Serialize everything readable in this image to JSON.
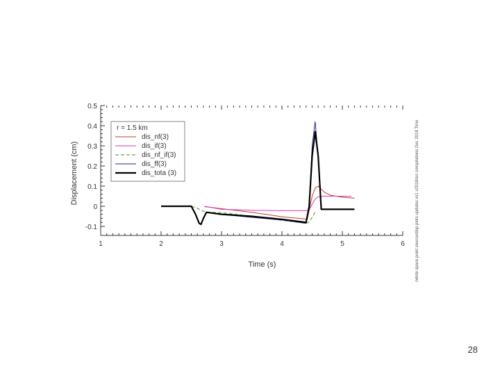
{
  "page": {
    "number": "28"
  },
  "side_note": "/white space point source/disp plots updates vs1 x2018/src compilations Dec 2018 Time",
  "chart_data": {
    "type": "line",
    "title": "",
    "xlabel": "Time (s)",
    "ylabel": "Displacement (cm)",
    "xlim": [
      1,
      6
    ],
    "ylim": [
      -0.1,
      0.5
    ],
    "x_ticks": [
      1,
      2,
      3,
      4,
      5,
      6
    ],
    "y_ticks": [
      -0.1,
      0,
      0.1,
      0.2,
      0.3,
      0.4,
      0.5
    ],
    "y_tick_labels": [
      "-0.1",
      "0",
      "0.1",
      "0.2",
      "0.3",
      "0.4",
      "0.5"
    ],
    "grid": false,
    "legend": {
      "placement": "top-left",
      "header": "r = 1.5 km",
      "entries": [
        "dis_nf(3)",
        "dis_if(3)",
        "dis_nf_if(3)",
        "dis_ff(3)",
        "dis_tota (3)"
      ]
    },
    "series": [
      {
        "name": "dis_nf(3)",
        "color": "#c0392b",
        "width": 1,
        "dash": "",
        "points": [
          [
            2.72,
            -0.002
          ],
          [
            2.8,
            -0.004
          ],
          [
            3.0,
            -0.012
          ],
          [
            3.5,
            -0.03
          ],
          [
            4.0,
            -0.052
          ],
          [
            4.35,
            -0.062
          ],
          [
            4.42,
            -0.064
          ],
          [
            4.45,
            -0.02
          ],
          [
            4.5,
            0.05
          ],
          [
            4.55,
            0.09
          ],
          [
            4.6,
            0.1
          ],
          [
            4.7,
            0.07
          ],
          [
            4.8,
            0.055
          ],
          [
            4.9,
            0.05
          ],
          [
            5.0,
            0.045
          ],
          [
            5.2,
            0.04
          ]
        ]
      },
      {
        "name": "dis_if(3)",
        "color": "#d63ab5",
        "width": 1,
        "dash": "",
        "points": [
          [
            2.72,
            0.0
          ],
          [
            2.8,
            -0.005
          ],
          [
            3.0,
            -0.015
          ],
          [
            3.5,
            -0.02
          ],
          [
            4.0,
            -0.022
          ],
          [
            4.4,
            -0.022
          ],
          [
            4.45,
            -0.02
          ],
          [
            4.5,
            0.01
          ],
          [
            4.55,
            0.035
          ],
          [
            4.6,
            0.047
          ],
          [
            4.7,
            0.05
          ],
          [
            5.0,
            0.05
          ],
          [
            5.15,
            0.05
          ]
        ]
      },
      {
        "name": "dis_nf_if(3)",
        "color": "#3a8d2a",
        "width": 1,
        "dash": "5,3",
        "points": [
          [
            2.5,
            0.0
          ],
          [
            2.6,
            -0.01
          ],
          [
            2.7,
            -0.025
          ],
          [
            2.8,
            -0.03
          ],
          [
            3.0,
            -0.032
          ],
          [
            3.5,
            -0.05
          ],
          [
            4.0,
            -0.07
          ],
          [
            4.4,
            -0.085
          ],
          [
            4.45,
            -0.078
          ],
          [
            4.5,
            -0.055
          ],
          [
            4.55,
            -0.03
          ]
        ]
      },
      {
        "name": "dis_ff(3)",
        "color": "#22228a",
        "width": 1,
        "dash": "",
        "points": [
          [
            2.0,
            0.0
          ],
          [
            2.5,
            0.0
          ],
          [
            2.57,
            -0.04
          ],
          [
            2.63,
            -0.085
          ],
          [
            2.66,
            -0.09
          ],
          [
            2.7,
            -0.06
          ],
          [
            2.75,
            -0.03
          ],
          [
            3.0,
            -0.04
          ],
          [
            3.5,
            -0.055
          ],
          [
            4.0,
            -0.068
          ],
          [
            4.4,
            -0.085
          ],
          [
            4.45,
            0.0
          ],
          [
            4.5,
            0.3
          ],
          [
            4.55,
            0.42
          ],
          [
            4.6,
            0.25
          ],
          [
            4.65,
            -0.015
          ],
          [
            5.0,
            -0.015
          ],
          [
            5.2,
            -0.015
          ]
        ]
      },
      {
        "name": "dis_tota (3)",
        "color": "#000000",
        "width": 2.2,
        "dash": "",
        "points": [
          [
            2.0,
            0.0
          ],
          [
            2.5,
            0.0
          ],
          [
            2.57,
            -0.04
          ],
          [
            2.63,
            -0.085
          ],
          [
            2.66,
            -0.09
          ],
          [
            2.7,
            -0.06
          ],
          [
            2.75,
            -0.03
          ],
          [
            3.0,
            -0.04
          ],
          [
            3.5,
            -0.05
          ],
          [
            4.0,
            -0.065
          ],
          [
            4.4,
            -0.08
          ],
          [
            4.45,
            0.0
          ],
          [
            4.5,
            0.25
          ],
          [
            4.55,
            0.37
          ],
          [
            4.6,
            0.25
          ],
          [
            4.65,
            -0.015
          ],
          [
            5.0,
            -0.015
          ],
          [
            5.2,
            -0.015
          ]
        ]
      }
    ]
  }
}
